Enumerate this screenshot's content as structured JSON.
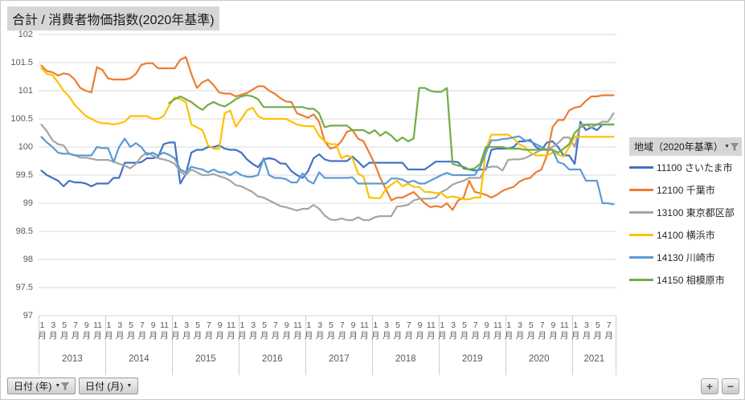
{
  "title": "合計 / 消費者物価指数(2020年基準)",
  "legend": {
    "header": "地域（2020年基準）",
    "icons": [
      "dropdown-arrow",
      "filter-funnel"
    ]
  },
  "filters": {
    "year_button": "日付 (年)",
    "month_button": "日付 (月)"
  },
  "zoom_controls": {
    "zoom_in": "+",
    "zoom_out": "−"
  },
  "colors": {
    "grid": "#d9d9d9",
    "axis_text": "#595959",
    "chip_bg": "#d6d6d6"
  },
  "chart_data": {
    "type": "line",
    "title": "合計 / 消費者物価指数(2020年基準)",
    "ylim": [
      97,
      102
    ],
    "yticks": [
      102,
      101.5,
      101,
      100.5,
      100,
      99.5,
      99,
      98.5,
      98,
      97.5,
      97
    ],
    "grid": true,
    "legend_position": "right",
    "x_unit": "month",
    "month_suffix": "月",
    "years": [
      {
        "year": "2013",
        "month_count": 12,
        "tick_months": [
          1,
          3,
          5,
          7,
          9,
          11
        ]
      },
      {
        "year": "2014",
        "month_count": 12,
        "tick_months": [
          1,
          3,
          5,
          7,
          9,
          11
        ]
      },
      {
        "year": "2015",
        "month_count": 12,
        "tick_months": [
          1,
          3,
          5,
          7,
          9,
          11
        ]
      },
      {
        "year": "2016",
        "month_count": 12,
        "tick_months": [
          1,
          3,
          5,
          7,
          9,
          11
        ]
      },
      {
        "year": "2017",
        "month_count": 12,
        "tick_months": [
          1,
          3,
          5,
          7,
          9,
          11
        ]
      },
      {
        "year": "2018",
        "month_count": 12,
        "tick_months": [
          1,
          3,
          5,
          7,
          9,
          11
        ]
      },
      {
        "year": "2019",
        "month_count": 12,
        "tick_months": [
          1,
          3,
          5,
          7,
          9,
          11
        ]
      },
      {
        "year": "2020",
        "month_count": 12,
        "tick_months": [
          1,
          3,
          5,
          7,
          9,
          11
        ]
      },
      {
        "year": "2021",
        "month_count": 8,
        "tick_months": [
          1,
          3,
          5,
          7
        ]
      }
    ],
    "series": [
      {
        "id": "11100",
        "name": "11100 さいたま市",
        "color": "#4472C4",
        "values": [
          99.58,
          99.5,
          99.45,
          99.4,
          99.3,
          99.4,
          99.37,
          99.37,
          99.35,
          99.3,
          99.35,
          99.35,
          99.35,
          99.45,
          99.45,
          99.72,
          99.72,
          99.72,
          99.73,
          99.8,
          99.8,
          99.82,
          100.05,
          100.08,
          100.08,
          99.35,
          99.52,
          99.9,
          99.95,
          99.95,
          100.0,
          100.0,
          100.03,
          99.97,
          99.95,
          99.95,
          99.9,
          99.78,
          99.7,
          99.64,
          99.78,
          99.8,
          99.78,
          99.71,
          99.7,
          99.57,
          99.5,
          99.45,
          99.57,
          99.8,
          99.87,
          99.78,
          99.75,
          99.75,
          99.75,
          99.75,
          99.83,
          99.74,
          99.64,
          99.72,
          99.72,
          99.72,
          99.72,
          99.72,
          99.72,
          99.72,
          99.6,
          99.6,
          99.6,
          99.6,
          99.67,
          99.74,
          99.74,
          99.74,
          99.74,
          99.73,
          99.62,
          99.6,
          99.58,
          99.6,
          99.6,
          99.95,
          99.97,
          99.97,
          99.97,
          100.0,
          100.1,
          100.1,
          100.13,
          100.0,
          99.95,
          100.08,
          100.1,
          100.0,
          99.85,
          99.85,
          99.7,
          100.45,
          100.3,
          100.35,
          100.3,
          100.4,
          100.4,
          100.4
        ]
      },
      {
        "id": "12100",
        "name": "12100 千葉市",
        "color": "#ED7D31",
        "values": [
          101.45,
          101.35,
          101.33,
          101.27,
          101.31,
          101.29,
          101.2,
          101.05,
          101.0,
          100.97,
          101.42,
          101.37,
          101.22,
          101.2,
          101.2,
          101.2,
          101.22,
          101.3,
          101.46,
          101.49,
          101.49,
          101.4,
          101.4,
          101.4,
          101.4,
          101.55,
          101.6,
          101.3,
          101.05,
          101.15,
          101.2,
          101.1,
          100.97,
          100.95,
          100.95,
          100.9,
          100.93,
          100.96,
          101.02,
          101.08,
          101.08,
          101.0,
          100.95,
          100.87,
          100.81,
          100.8,
          100.6,
          100.56,
          100.52,
          100.58,
          100.45,
          100.1,
          99.97,
          100.0,
          100.1,
          100.27,
          100.3,
          100.15,
          100.1,
          99.9,
          99.7,
          99.45,
          99.25,
          99.05,
          99.1,
          99.1,
          99.15,
          99.2,
          99.1,
          99.0,
          98.93,
          98.95,
          98.93,
          99.0,
          98.88,
          99.05,
          99.1,
          99.4,
          99.2,
          99.18,
          99.15,
          99.1,
          99.15,
          99.22,
          99.26,
          99.29,
          99.38,
          99.43,
          99.45,
          99.55,
          99.6,
          99.85,
          100.35,
          100.48,
          100.48,
          100.65,
          100.7,
          100.72,
          100.82,
          100.9,
          100.9,
          100.92,
          100.92,
          100.92
        ]
      },
      {
        "id": "13100",
        "name": "13100 東京都区部",
        "color": "#A5A5A5",
        "values": [
          100.4,
          100.28,
          100.12,
          100.05,
          100.03,
          99.88,
          99.86,
          99.81,
          99.81,
          99.79,
          99.77,
          99.77,
          99.77,
          99.74,
          99.7,
          99.67,
          99.62,
          99.7,
          99.83,
          99.9,
          99.85,
          99.8,
          99.78,
          99.75,
          99.7,
          99.56,
          99.5,
          99.6,
          99.55,
          99.5,
          99.5,
          99.52,
          99.48,
          99.45,
          99.4,
          99.32,
          99.3,
          99.25,
          99.2,
          99.12,
          99.1,
          99.05,
          99.0,
          98.95,
          98.93,
          98.9,
          98.87,
          98.9,
          98.9,
          98.97,
          98.9,
          98.78,
          98.71,
          98.7,
          98.73,
          98.7,
          98.7,
          98.75,
          98.7,
          98.7,
          98.75,
          98.77,
          98.77,
          98.77,
          98.94,
          98.95,
          98.97,
          99.05,
          99.08,
          99.08,
          99.08,
          99.1,
          99.2,
          99.25,
          99.33,
          99.37,
          99.4,
          99.45,
          99.45,
          99.45,
          99.63,
          99.65,
          99.65,
          99.58,
          99.77,
          99.78,
          99.78,
          99.8,
          99.85,
          99.9,
          99.95,
          99.95,
          100.0,
          100.07,
          100.17,
          100.17,
          100.0,
          100.4,
          100.4,
          100.35,
          100.4,
          100.45,
          100.45,
          100.6
        ]
      },
      {
        "id": "14100",
        "name": "14100 横浜市",
        "color": "#FFC000",
        "values": [
          101.4,
          101.3,
          101.28,
          101.15,
          101.0,
          100.9,
          100.75,
          100.65,
          100.55,
          100.5,
          100.45,
          100.42,
          100.42,
          100.4,
          100.42,
          100.45,
          100.55,
          100.55,
          100.55,
          100.55,
          100.5,
          100.5,
          100.55,
          100.74,
          100.88,
          100.85,
          100.8,
          100.4,
          100.35,
          100.3,
          100.03,
          99.97,
          99.97,
          100.6,
          100.65,
          100.36,
          100.5,
          100.65,
          100.7,
          100.55,
          100.5,
          100.5,
          100.5,
          100.5,
          100.5,
          100.45,
          100.4,
          100.38,
          100.37,
          100.37,
          100.2,
          100.1,
          100.05,
          100.05,
          99.8,
          99.85,
          99.8,
          99.53,
          99.47,
          99.1,
          99.09,
          99.09,
          99.25,
          99.33,
          99.4,
          99.3,
          99.35,
          99.29,
          99.29,
          99.2,
          99.2,
          99.18,
          99.18,
          99.1,
          99.12,
          99.1,
          99.07,
          99.07,
          99.1,
          99.1,
          99.95,
          100.22,
          100.22,
          100.22,
          100.22,
          100.15,
          100.05,
          100.0,
          99.9,
          99.85,
          99.85,
          99.85,
          99.9,
          99.87,
          99.83,
          100.0,
          100.18,
          100.18,
          100.18,
          100.18,
          100.18,
          100.18,
          100.18,
          100.18
        ]
      },
      {
        "id": "14130",
        "name": "14130 川崎市",
        "color": "#5B9BD5",
        "values": [
          100.18,
          100.08,
          100.0,
          99.9,
          99.88,
          99.88,
          99.85,
          99.85,
          99.85,
          99.85,
          100.0,
          99.98,
          99.98,
          99.73,
          100.0,
          100.15,
          100.0,
          100.07,
          100.0,
          99.86,
          99.9,
          99.85,
          99.9,
          99.86,
          99.8,
          99.6,
          99.55,
          99.65,
          99.62,
          99.6,
          99.55,
          99.6,
          99.55,
          99.55,
          99.5,
          99.56,
          99.5,
          99.47,
          99.47,
          99.5,
          99.8,
          99.5,
          99.45,
          99.45,
          99.43,
          99.37,
          99.37,
          99.53,
          99.4,
          99.35,
          99.55,
          99.45,
          99.45,
          99.45,
          99.45,
          99.45,
          99.46,
          99.35,
          99.35,
          99.35,
          99.35,
          99.35,
          99.35,
          99.44,
          99.44,
          99.42,
          99.37,
          99.4,
          99.35,
          99.35,
          99.4,
          99.45,
          99.5,
          99.54,
          99.5,
          99.5,
          99.5,
          99.5,
          99.5,
          99.65,
          99.9,
          100.12,
          100.12,
          100.14,
          100.15,
          100.17,
          100.19,
          100.12,
          100.1,
          100.05,
          100.0,
          99.95,
          99.95,
          99.73,
          99.7,
          99.6,
          99.6,
          99.6,
          99.4,
          99.4,
          99.4,
          99.0,
          99.0,
          98.98
        ]
      },
      {
        "id": "14150",
        "name": "14150 相模原市",
        "color": "#70AD47",
        "values": [
          null,
          null,
          null,
          null,
          null,
          null,
          null,
          null,
          null,
          null,
          null,
          null,
          null,
          null,
          null,
          null,
          null,
          null,
          null,
          null,
          null,
          null,
          null,
          100.78,
          100.85,
          100.9,
          100.85,
          100.8,
          100.72,
          100.66,
          100.75,
          100.8,
          100.75,
          100.72,
          100.78,
          100.85,
          100.9,
          100.92,
          100.9,
          100.85,
          100.71,
          100.71,
          100.71,
          100.71,
          100.71,
          100.71,
          100.71,
          100.71,
          100.68,
          100.68,
          100.6,
          100.35,
          100.38,
          100.38,
          100.38,
          100.38,
          100.3,
          100.3,
          100.3,
          100.24,
          100.3,
          100.2,
          100.27,
          100.2,
          100.1,
          100.17,
          100.1,
          100.15,
          101.05,
          101.05,
          101.0,
          100.98,
          100.98,
          101.05,
          99.7,
          99.67,
          99.65,
          99.6,
          99.62,
          99.7,
          100.0,
          100.0,
          100.0,
          100.0,
          99.97,
          99.97,
          99.97,
          99.95,
          99.95,
          99.95,
          99.95,
          99.95,
          99.95,
          99.9,
          99.97,
          100.05,
          100.25,
          100.35,
          100.4,
          100.4,
          100.4,
          100.4,
          100.4,
          100.4
        ]
      }
    ]
  }
}
